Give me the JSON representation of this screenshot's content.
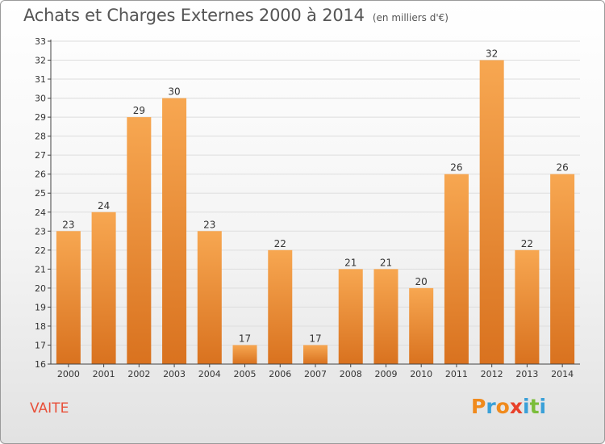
{
  "title": "Achats et Charges Externes 2000 à 2014",
  "subtitle": "(en milliers d'€)",
  "commune": "VAITE",
  "logo": {
    "letters": [
      "P",
      "r",
      "o",
      "x",
      "i",
      "t",
      "i"
    ],
    "colors": [
      "#f08a1c",
      "#3aa0d8",
      "#f08a1c",
      "#e8402a",
      "#3aa0d8",
      "#7bbd3a",
      "#3aa0d8"
    ]
  },
  "colors": {
    "bar_light": "#f7a751",
    "bar_dark": "#d9721f",
    "grid": "#dddddd",
    "axis": "#444444",
    "label": "#333333",
    "commune": "#e8503a"
  },
  "chart_data": {
    "type": "bar",
    "categories": [
      "2000",
      "2001",
      "2002",
      "2003",
      "2004",
      "2005",
      "2006",
      "2007",
      "2008",
      "2009",
      "2010",
      "2011",
      "2012",
      "2013",
      "2014"
    ],
    "values": [
      23,
      24,
      29,
      30,
      23,
      17,
      22,
      17,
      21,
      21,
      20,
      26,
      32,
      22,
      26
    ],
    "ylim": [
      16,
      33
    ],
    "yticks": [
      16,
      17,
      18,
      19,
      20,
      21,
      22,
      23,
      24,
      25,
      26,
      27,
      28,
      29,
      30,
      31,
      32,
      33
    ],
    "grid": true,
    "data_labels": true
  }
}
